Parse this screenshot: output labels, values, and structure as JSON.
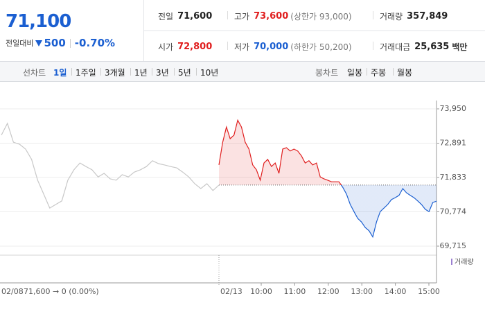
{
  "header": {
    "price": "71,100",
    "change_label": "전일대비",
    "change": "500",
    "change_pct": "-0.70%"
  },
  "summary": {
    "rows": [
      [
        {
          "label": "전일",
          "value": "71,600"
        },
        {
          "label": "고가",
          "value": "73,600",
          "note": "(상한가 93,000)"
        },
        {
          "label": "거래량",
          "value": "357,849"
        }
      ],
      [
        {
          "label": "시가",
          "value": "72,800"
        },
        {
          "label": "저가",
          "value": "70,000",
          "note": "(하한가 50,200)"
        },
        {
          "label": "거래대금",
          "value": "25,635",
          "unit": "백만"
        }
      ]
    ]
  },
  "tabs": {
    "line_label": "선차트",
    "line_periods": [
      "1일",
      "1주일",
      "3개월",
      "1년",
      "3년",
      "5년",
      "10년"
    ],
    "candle_label": "봉차트",
    "candle_periods": [
      "일봉",
      "주봉",
      "월봉"
    ]
  },
  "chart_data": {
    "type": "line",
    "ylim": [
      69715,
      73950
    ],
    "yticks": [
      {
        "value": 73950,
        "label": "73,950"
      },
      {
        "value": 72891,
        "label": "72,891"
      },
      {
        "value": 71833,
        "label": "71,833"
      },
      {
        "value": 70774,
        "label": "70,774"
      },
      {
        "value": 69715,
        "label": "69,715"
      }
    ],
    "grid": true,
    "baseline": 71600,
    "up_color": "#e01e1e",
    "down_color": "#1b5fd1",
    "series": [
      {
        "name": "02/08",
        "color": "#c8c8c8",
        "values": [
          73140,
          73500,
          72920,
          72860,
          72710,
          72390,
          71750,
          71320,
          70890,
          71000,
          71110,
          71750,
          72070,
          72280,
          72170,
          72070,
          71850,
          71960,
          71790,
          71750,
          71920,
          71850,
          72000,
          72070,
          72170,
          72350,
          72260,
          72220,
          72170,
          72130,
          72000,
          71850,
          71640,
          71490,
          71640,
          71430,
          71600
        ]
      },
      {
        "name": "02/13",
        "values": [
          72220,
          72920,
          73390,
          73030,
          73140,
          73600,
          73390,
          72920,
          72710,
          72220,
          72070,
          71750,
          72280,
          72390,
          72170,
          72280,
          71960,
          72710,
          72750,
          72650,
          72710,
          72650,
          72500,
          72280,
          72350,
          72220,
          72280,
          71850,
          71790,
          71750,
          71700,
          71700,
          71700,
          71530,
          71320,
          71000,
          70780,
          70570,
          70460,
          70290,
          70190,
          70000,
          70460,
          70780,
          70890,
          71000,
          71150,
          71210,
          71280,
          71490,
          71360,
          71280,
          71210,
          71110,
          71000,
          70850,
          70780,
          71060,
          71100
        ]
      }
    ],
    "prev_summary": "71,600 → 0 (0.00%)",
    "time_labels": [
      "10:00",
      "11:00",
      "12:00",
      "13:00",
      "14:00",
      "15:00"
    ],
    "volume_label": "거래량"
  }
}
